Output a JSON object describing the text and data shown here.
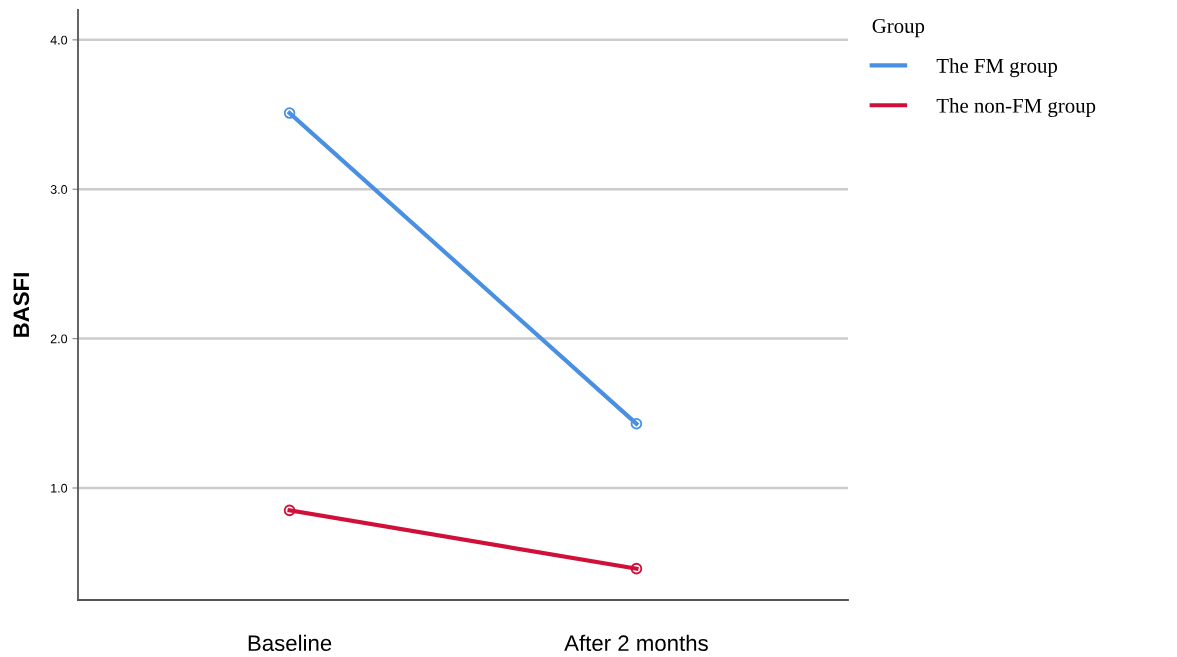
{
  "chart_data": {
    "type": "line",
    "ylabel": "BASFI",
    "legend_title": "Group",
    "categories": [
      "Baseline",
      "After 2 months"
    ],
    "series": [
      {
        "name": "The FM group",
        "color": "#4a90e2",
        "values": [
          3.51,
          1.43
        ]
      },
      {
        "name": "The non-FM group",
        "color": "#d0103a",
        "values": [
          0.85,
          0.46
        ]
      }
    ],
    "ylim": [
      0.25,
      4.2
    ],
    "yticks": [
      {
        "value": 1,
        "label": "1.0"
      },
      {
        "value": 2,
        "label": "2.0"
      },
      {
        "value": 3,
        "label": "3.0"
      },
      {
        "value": 4,
        "label": "4.0"
      }
    ],
    "grid": "y",
    "legend": "top right",
    "marker": "circle",
    "line_style": "solid"
  }
}
